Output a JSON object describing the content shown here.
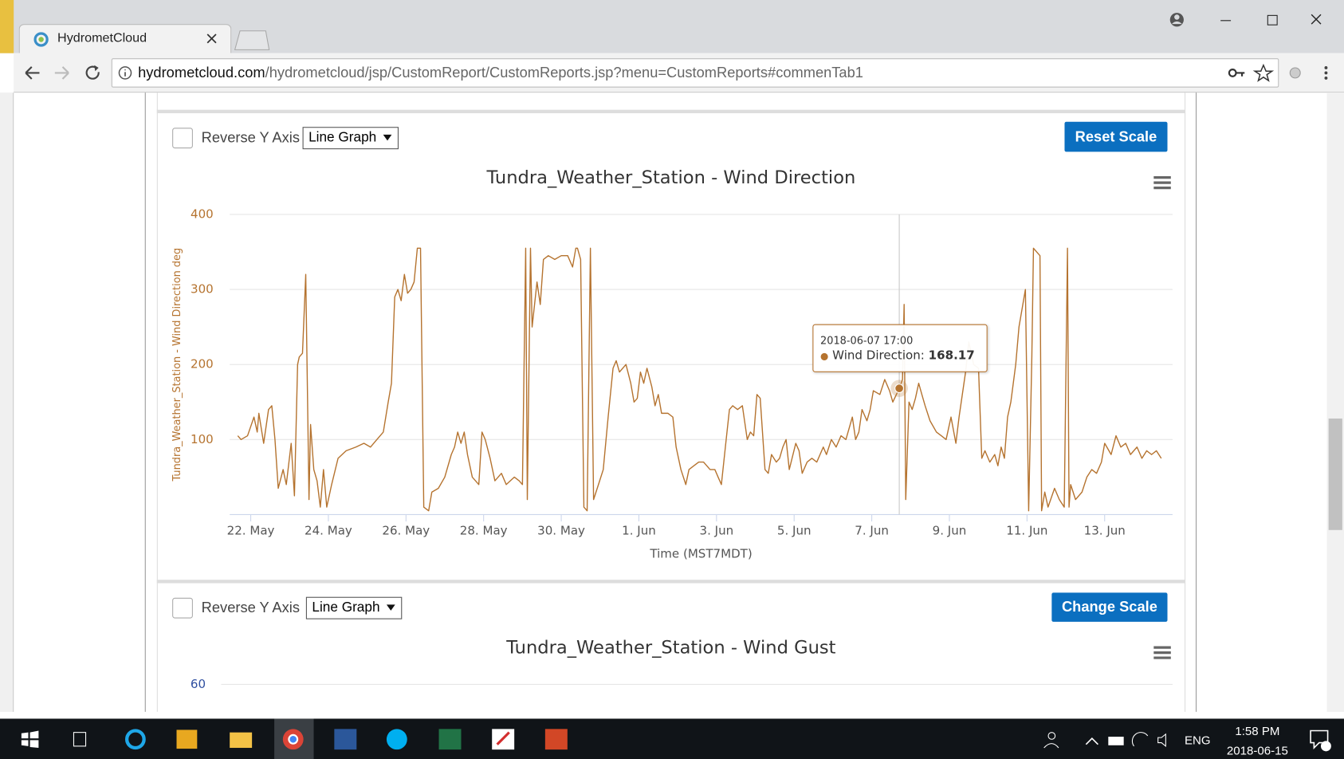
{
  "browser": {
    "tab_title": "HydrometCloud",
    "url_host": "hydrometcloud.com",
    "url_path": "/hydrometcloud/jsp/CustomReport/CustomReports.jsp?menu=CustomReports#commenTab1"
  },
  "panels": [
    {
      "checkbox_label": "Reverse Y Axis",
      "graph_type": "Line Graph",
      "button": "Reset Scale"
    },
    {
      "checkbox_label": "Reverse Y Axis",
      "graph_type": "Line Graph",
      "button": "Change Scale"
    }
  ],
  "chart_data": [
    {
      "type": "line",
      "title": "Tundra_Weather_Station - Wind Direction",
      "y_label": "Tundra_Weather_Station - Wind Direction deg",
      "x_label": "Time (MST7MDT)",
      "x": [
        "2018-05-21 16:00",
        "2018-05-21 18:00",
        "2018-05-21 22:00",
        "2018-05-22 02:00",
        "2018-05-22 04:00",
        "2018-05-22 05:00",
        "2018-05-22 08:00",
        "2018-05-22 11:00",
        "2018-05-22 13:00",
        "2018-05-22 15:00",
        "2018-05-22 17:00",
        "2018-05-22 20:00",
        "2018-05-22 22:00",
        "2018-05-23 01:00",
        "2018-05-23 03:00",
        "2018-05-23 05:00",
        "2018-05-23 06:00",
        "2018-05-23 08:00",
        "2018-05-23 10:00",
        "2018-05-23 12:00",
        "2018-05-23 13:00",
        "2018-05-23 15:00",
        "2018-05-23 17:00",
        "2018-05-23 19:00",
        "2018-05-23 21:00",
        "2018-05-23 23:00",
        "2018-05-24 02:00",
        "2018-05-24 06:00",
        "2018-05-24 11:00",
        "2018-05-24 17:00",
        "2018-05-24 22:00",
        "2018-05-25 02:00",
        "2018-05-25 06:00",
        "2018-05-25 10:00",
        "2018-05-25 13:00",
        "2018-05-25 15:00",
        "2018-05-25 17:00",
        "2018-05-25 19:00",
        "2018-05-25 21:00",
        "2018-05-25 23:00",
        "2018-05-26 01:00",
        "2018-05-26 03:00",
        "2018-05-26 05:00",
        "2018-05-26 07:00",
        "2018-05-26 09:00",
        "2018-05-26 11:00",
        "2018-05-26 14:00",
        "2018-05-26 16:00",
        "2018-05-26 20:00",
        "2018-05-27 00:00",
        "2018-05-27 04:00",
        "2018-05-27 06:00",
        "2018-05-27 08:00",
        "2018-05-27 10:00",
        "2018-05-27 12:00",
        "2018-05-27 14:00",
        "2018-05-27 17:00",
        "2018-05-27 21:00",
        "2018-05-27 23:00",
        "2018-05-28 01:00",
        "2018-05-28 04:00",
        "2018-05-28 07:00",
        "2018-05-28 11:00",
        "2018-05-28 14:00",
        "2018-05-28 19:00",
        "2018-05-28 22:00",
        "2018-05-29 00:00",
        "2018-05-29 02:00",
        "2018-05-29 03:00",
        "2018-05-29 05:00",
        "2018-05-29 06:00",
        "2018-05-29 09:00",
        "2018-05-29 11:00",
        "2018-05-29 13:00",
        "2018-05-29 16:00",
        "2018-05-29 20:00",
        "2018-05-30 00:00",
        "2018-05-30 04:00",
        "2018-05-30 07:00",
        "2018-05-30 09:00",
        "2018-05-30 10:00",
        "2018-05-30 12:00",
        "2018-05-30 14:00",
        "2018-05-30 16:00",
        "2018-05-30 18:00",
        "2018-05-30 20:00",
        "2018-05-30 23:00",
        "2018-05-31 02:00",
        "2018-05-31 05:00",
        "2018-05-31 08:00",
        "2018-05-31 10:00",
        "2018-05-31 12:00",
        "2018-05-31 16:00",
        "2018-05-31 19:00",
        "2018-05-31 21:00",
        "2018-05-31 23:00",
        "2018-06-01 01:00",
        "2018-06-01 03:00",
        "2018-06-01 05:00",
        "2018-06-01 08:00",
        "2018-06-01 10:00",
        "2018-06-01 12:00",
        "2018-06-01 14:00",
        "2018-06-01 18:00",
        "2018-06-01 21:00",
        "2018-06-01 23:00",
        "2018-06-02 02:00",
        "2018-06-02 05:00",
        "2018-06-02 07:00",
        "2018-06-02 10:00",
        "2018-06-02 13:00",
        "2018-06-02 16:00",
        "2018-06-02 20:00",
        "2018-06-02 23:00",
        "2018-06-03 01:00",
        "2018-06-03 03:00",
        "2018-06-03 06:00",
        "2018-06-03 08:00",
        "2018-06-03 10:00",
        "2018-06-03 13:00",
        "2018-06-03 16:00",
        "2018-06-03 19:00",
        "2018-06-03 21:00",
        "2018-06-03 23:00",
        "2018-06-04 01:00",
        "2018-06-04 03:00",
        "2018-06-04 06:00",
        "2018-06-04 08:00",
        "2018-06-04 10:00",
        "2018-06-04 13:00",
        "2018-06-04 15:00",
        "2018-06-04 17:00",
        "2018-06-04 19:00",
        "2018-06-04 21:00",
        "2018-06-05 01:00",
        "2018-06-05 03:00",
        "2018-06-05 05:00",
        "2018-06-05 08:00",
        "2018-06-05 11:00",
        "2018-06-05 14:00",
        "2018-06-05 18:00",
        "2018-06-05 20:00",
        "2018-06-05 23:00",
        "2018-06-06 02:00",
        "2018-06-06 05:00",
        "2018-06-06 08:00",
        "2018-06-06 12:00",
        "2018-06-06 14:00",
        "2018-06-06 16:00",
        "2018-06-06 18:00",
        "2018-06-06 21:00",
        "2018-06-06 23:00",
        "2018-06-07 01:00",
        "2018-06-07 05:00",
        "2018-06-07 08:00",
        "2018-06-07 11:00",
        "2018-06-07 13:00",
        "2018-06-07 17:00",
        "2018-06-07 19:00",
        "2018-06-07 20:00",
        "2018-06-07 21:00",
        "2018-06-07 23:00",
        "2018-06-08 01:00",
        "2018-06-08 03:00",
        "2018-06-08 05:00",
        "2018-06-08 07:00",
        "2018-06-08 09:00",
        "2018-06-08 12:00",
        "2018-06-08 16:00",
        "2018-06-08 19:00",
        "2018-06-08 22:00",
        "2018-06-09 01:00",
        "2018-06-09 04:00",
        "2018-06-09 06:00",
        "2018-06-09 10:00",
        "2018-06-09 12:00",
        "2018-06-09 15:00",
        "2018-06-09 18:00",
        "2018-06-09 20:00",
        "2018-06-09 22:00",
        "2018-06-10 01:00",
        "2018-06-10 04:00",
        "2018-06-10 06:00",
        "2018-06-10 08:00",
        "2018-06-10 10:00",
        "2018-06-10 12:00",
        "2018-06-10 14:00",
        "2018-06-10 17:00",
        "2018-06-10 19:00",
        "2018-06-10 23:00",
        "2018-06-11 01:00",
        "2018-06-11 03:00",
        "2018-06-11 04:00",
        "2018-06-11 06:00",
        "2018-06-11 08:00",
        "2018-06-11 09:00",
        "2018-06-11 11:00",
        "2018-06-11 13:00",
        "2018-06-11 17:00",
        "2018-06-11 20:00",
        "2018-06-11 23:00",
        "2018-06-12 01:00",
        "2018-06-12 02:00",
        "2018-06-12 03:00",
        "2018-06-12 06:00",
        "2018-06-12 10:00",
        "2018-06-12 13:00",
        "2018-06-12 16:00",
        "2018-06-12 19:00",
        "2018-06-12 22:00",
        "2018-06-13 00:00",
        "2018-06-13 04:00",
        "2018-06-13 07:00",
        "2018-06-13 10:00",
        "2018-06-13 13:00",
        "2018-06-13 16:00",
        "2018-06-13 20:00",
        "2018-06-13 23:00",
        "2018-06-14 02:00",
        "2018-06-14 05:00",
        "2018-06-14 08:00",
        "2018-06-14 11:00"
      ],
      "series": [
        {
          "name": "Wind Direction",
          "color": "#b5732f",
          "values": [
            105,
            100,
            105,
            130,
            110,
            135,
            95,
            140,
            145,
            100,
            35,
            60,
            40,
            95,
            25,
            200,
            210,
            215,
            320,
            20,
            120,
            60,
            45,
            10,
            60,
            10,
            40,
            75,
            85,
            90,
            95,
            90,
            100,
            110,
            150,
            175,
            290,
            300,
            285,
            320,
            295,
            300,
            310,
            355,
            355,
            10,
            5,
            30,
            35,
            50,
            80,
            90,
            110,
            95,
            110,
            80,
            50,
            40,
            110,
            100,
            75,
            45,
            55,
            40,
            50,
            45,
            40,
            355,
            20,
            355,
            250,
            310,
            280,
            340,
            345,
            340,
            345,
            345,
            330,
            355,
            355,
            340,
            10,
            5,
            355,
            20,
            40,
            60,
            130,
            195,
            205,
            190,
            200,
            175,
            150,
            155,
            190,
            175,
            195,
            170,
            145,
            160,
            135,
            135,
            130,
            90,
            60,
            40,
            60,
            65,
            70,
            70,
            60,
            60,
            50,
            40,
            100,
            140,
            145,
            140,
            145,
            100,
            110,
            105,
            160,
            155,
            60,
            55,
            80,
            70,
            75,
            90,
            100,
            60,
            95,
            85,
            55,
            70,
            75,
            70,
            90,
            80,
            100,
            90,
            105,
            100,
            130,
            100,
            110,
            140,
            125,
            140,
            165,
            160,
            180,
            165,
            150,
            168.17,
            180,
            280,
            20,
            150,
            140,
            155,
            175,
            160,
            145,
            125,
            110,
            105,
            100,
            130,
            95,
            130,
            190,
            230,
            200,
            195,
            75,
            85,
            70,
            80,
            65,
            90,
            75,
            130,
            150,
            200,
            250,
            300,
            5,
            210,
            355,
            350,
            345,
            5,
            30,
            10,
            35,
            20,
            10,
            355,
            10,
            40,
            20,
            30,
            50,
            60,
            55,
            70,
            95,
            80,
            105,
            90,
            95,
            80,
            90,
            75,
            85,
            80,
            85,
            75
          ]
        }
      ],
      "xlim": [
        "2018-05-21 11:00",
        "2018-06-14 18:00"
      ],
      "xticks": [
        {
          "value": "2018-05-22 00:00",
          "label": "22. May"
        },
        {
          "value": "2018-05-24 00:00",
          "label": "24. May"
        },
        {
          "value": "2018-05-26 00:00",
          "label": "26. May"
        },
        {
          "value": "2018-05-28 00:00",
          "label": "28. May"
        },
        {
          "value": "2018-05-30 00:00",
          "label": "30. May"
        },
        {
          "value": "2018-06-01 00:00",
          "label": "1. Jun"
        },
        {
          "value": "2018-06-03 00:00",
          "label": "3. Jun"
        },
        {
          "value": "2018-06-05 00:00",
          "label": "5. Jun"
        },
        {
          "value": "2018-06-07 00:00",
          "label": "7. Jun"
        },
        {
          "value": "2018-06-09 00:00",
          "label": "9. Jun"
        },
        {
          "value": "2018-06-11 00:00",
          "label": "11. Jun"
        },
        {
          "value": "2018-06-13 00:00",
          "label": "13. Jun"
        }
      ],
      "ylim": [
        0,
        400
      ],
      "yticks": [
        100,
        200,
        300,
        400
      ],
      "grid": true
    },
    {
      "type": "line",
      "title": "Tundra_Weather_Station - Wind Gust",
      "yticks": [
        60
      ]
    }
  ],
  "taskbar": {
    "language": "ENG",
    "time": "1:58 PM",
    "date": "2018-06-15"
  }
}
